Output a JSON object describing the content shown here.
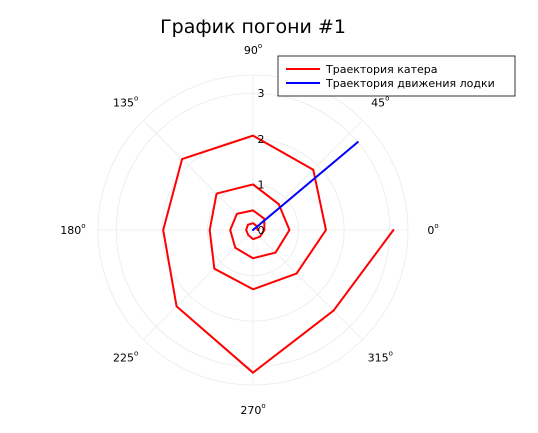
{
  "chart_data": {
    "type": "line",
    "projection": "polar",
    "title": "График погони #1",
    "angular_ticks": [
      {
        "deg": 0,
        "label": "0"
      },
      {
        "deg": 45,
        "label": "45"
      },
      {
        "deg": 90,
        "label": "90"
      },
      {
        "deg": 135,
        "label": "135"
      },
      {
        "deg": 180,
        "label": "180"
      },
      {
        "deg": 225,
        "label": "225"
      },
      {
        "deg": 270,
        "label": "270"
      },
      {
        "deg": 315,
        "label": "315"
      }
    ],
    "degree_mark": "o",
    "radial_ticks": [
      {
        "value": 0,
        "label": "0"
      },
      {
        "value": 1,
        "label": "1"
      },
      {
        "value": 2,
        "label": "2"
      },
      {
        "value": 3,
        "label": "3"
      }
    ],
    "rlim": [
      0,
      3.4
    ],
    "grid": true,
    "legend_position": "top-right",
    "series": [
      {
        "name": "Траектория катера",
        "color": "#ff0000",
        "points": [
          {
            "theta": 0,
            "r": 0.1
          },
          {
            "theta": 45,
            "r": 0.12
          },
          {
            "theta": 90,
            "r": 0.15
          },
          {
            "theta": 135,
            "r": 0.16
          },
          {
            "theta": 180,
            "r": 0.15
          },
          {
            "theta": 225,
            "r": 0.15
          },
          {
            "theta": 270,
            "r": 0.2
          },
          {
            "theta": 315,
            "r": 0.21
          },
          {
            "theta": 360,
            "r": 0.25
          },
          {
            "theta": 405,
            "r": 0.35
          },
          {
            "theta": 450,
            "r": 0.43
          },
          {
            "theta": 495,
            "r": 0.5
          },
          {
            "theta": 540,
            "r": 0.5
          },
          {
            "theta": 585,
            "r": 0.55
          },
          {
            "theta": 630,
            "r": 0.62
          },
          {
            "theta": 675,
            "r": 0.7
          },
          {
            "theta": 720,
            "r": 0.8
          },
          {
            "theta": 765,
            "r": 0.8
          },
          {
            "theta": 810,
            "r": 1.0
          },
          {
            "theta": 855,
            "r": 1.13
          },
          {
            "theta": 900,
            "r": 0.95
          },
          {
            "theta": 945,
            "r": 1.2
          },
          {
            "theta": 990,
            "r": 1.3
          },
          {
            "theta": 1035,
            "r": 1.35
          },
          {
            "theta": 1080,
            "r": 1.6
          },
          {
            "theta": 1125,
            "r": 1.87
          },
          {
            "theta": 1170,
            "r": 2.07
          },
          {
            "theta": 1215,
            "r": 2.2
          },
          {
            "theta": 1260,
            "r": 1.97
          },
          {
            "theta": 1305,
            "r": 2.37
          },
          {
            "theta": 1350,
            "r": 3.13
          },
          {
            "theta": 1395,
            "r": 2.5
          },
          {
            "theta": 1440,
            "r": 3.08
          }
        ]
      },
      {
        "name": "Траектория движения лодки",
        "color": "#0000ff",
        "points": [
          {
            "theta": 40,
            "r": 0
          },
          {
            "theta": 40,
            "r": 3.0
          }
        ]
      }
    ]
  }
}
